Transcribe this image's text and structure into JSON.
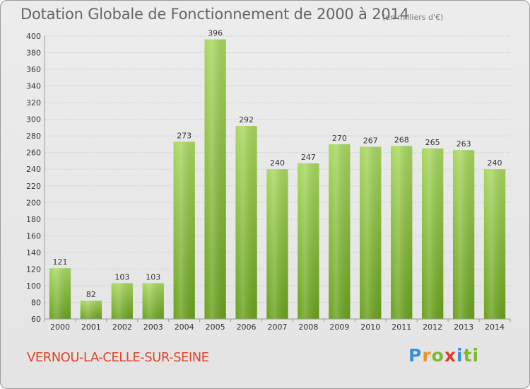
{
  "header": {
    "title": "Dotation Globale de Fonctionnement de 2000 à 2014",
    "subtitle": "(en milliers d'€)"
  },
  "footer": {
    "commune": "VERNOU-LA-CELLE-SUR-SEINE",
    "logo_letters": [
      "P",
      "r",
      "o",
      "x",
      "i",
      "ti"
    ]
  },
  "chart_data": {
    "type": "bar",
    "title": "Dotation Globale de Fonctionnement de 2000 à 2014",
    "subtitle": "(en milliers d'€)",
    "categories": [
      "2000",
      "2001",
      "2002",
      "2003",
      "2004",
      "2005",
      "2006",
      "2007",
      "2008",
      "2009",
      "2010",
      "2011",
      "2012",
      "2013",
      "2014"
    ],
    "values": [
      121,
      82,
      103,
      103,
      273,
      396,
      292,
      240,
      247,
      270,
      267,
      268,
      265,
      263,
      240
    ],
    "ylim": [
      60,
      400
    ],
    "yticks": [
      60,
      80,
      100,
      120,
      140,
      160,
      180,
      200,
      220,
      240,
      260,
      280,
      300,
      320,
      340,
      360,
      380,
      400
    ],
    "grid": true,
    "colors": {
      "bar_light": "#a8d860",
      "bar_dark": "#6aa21e",
      "grid": "#cfcfcf"
    }
  }
}
